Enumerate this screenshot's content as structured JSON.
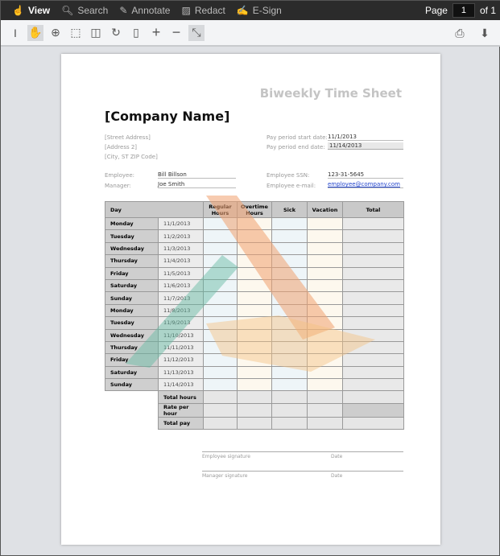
{
  "topbar": {
    "items": [
      {
        "label": "View",
        "icon": "hand-pointer-icon"
      },
      {
        "label": "Search",
        "icon": "search-icon"
      },
      {
        "label": "Annotate",
        "icon": "pencil-icon"
      },
      {
        "label": "Redact",
        "icon": "redact-icon"
      },
      {
        "label": "E-Sign",
        "icon": "signature-icon"
      }
    ],
    "page_label": "Page",
    "page_value": "1",
    "page_of": "of 1"
  },
  "toolbar": {
    "tools": [
      "text-select-icon",
      "pan-hand-icon",
      "zoom-area-icon",
      "marquee-select-icon",
      "fit-width-icon",
      "rotate-icon",
      "fit-page-icon",
      "zoom-in-icon",
      "zoom-out-icon",
      "fullscreen-icon"
    ],
    "right": [
      "print-icon",
      "download-icon"
    ]
  },
  "doc": {
    "title": "Biweekly Time Sheet",
    "company": "[Company Name]",
    "address": [
      "[Street Address]",
      "[Address 2]",
      "[City, ST  ZIP Code]"
    ],
    "pay_start_label": "Pay period start date:",
    "pay_start": "11/1/2013",
    "pay_end_label": "Pay period end date:",
    "pay_end": "11/14/2013",
    "employee_label": "Employee:",
    "employee": "Bill Billson",
    "manager_label": "Manager:",
    "manager": "Joe Smith",
    "ssn_label": "Employee SSN:",
    "ssn": "123-31-5645",
    "email_label": "Employee e-mail:",
    "email": "employee@company.com",
    "headers": [
      "Day",
      "Regular Hours",
      "Overtime Hours",
      "Sick",
      "Vacation",
      "Total"
    ],
    "rows": [
      [
        "Monday",
        "11/1/2013"
      ],
      [
        "Tuesday",
        "11/2/2013"
      ],
      [
        "Wednesday",
        "11/3/2013"
      ],
      [
        "Thursday",
        "11/4/2013"
      ],
      [
        "Friday",
        "11/5/2013"
      ],
      [
        "Saturday",
        "11/6/2013"
      ],
      [
        "Sunday",
        "11/7/2013"
      ],
      [
        "Monday",
        "11/8/2013"
      ],
      [
        "Tuesday",
        "11/9/2013"
      ],
      [
        "Wednesday",
        "11/10/2013"
      ],
      [
        "Thursday",
        "11/11/2013"
      ],
      [
        "Friday",
        "11/12/2013"
      ],
      [
        "Saturday",
        "11/13/2013"
      ],
      [
        "Sunday",
        "11/14/2013"
      ]
    ],
    "summary": [
      "Total hours",
      "Rate per hour",
      "Total pay"
    ],
    "emp_sig": "Employee signature",
    "mgr_sig": "Manager signature",
    "date_label": "Date"
  },
  "colors": {
    "watermark_orange": "#f0a070",
    "watermark_teal": "#5fb8a0",
    "watermark_gold": "#f5c080"
  }
}
